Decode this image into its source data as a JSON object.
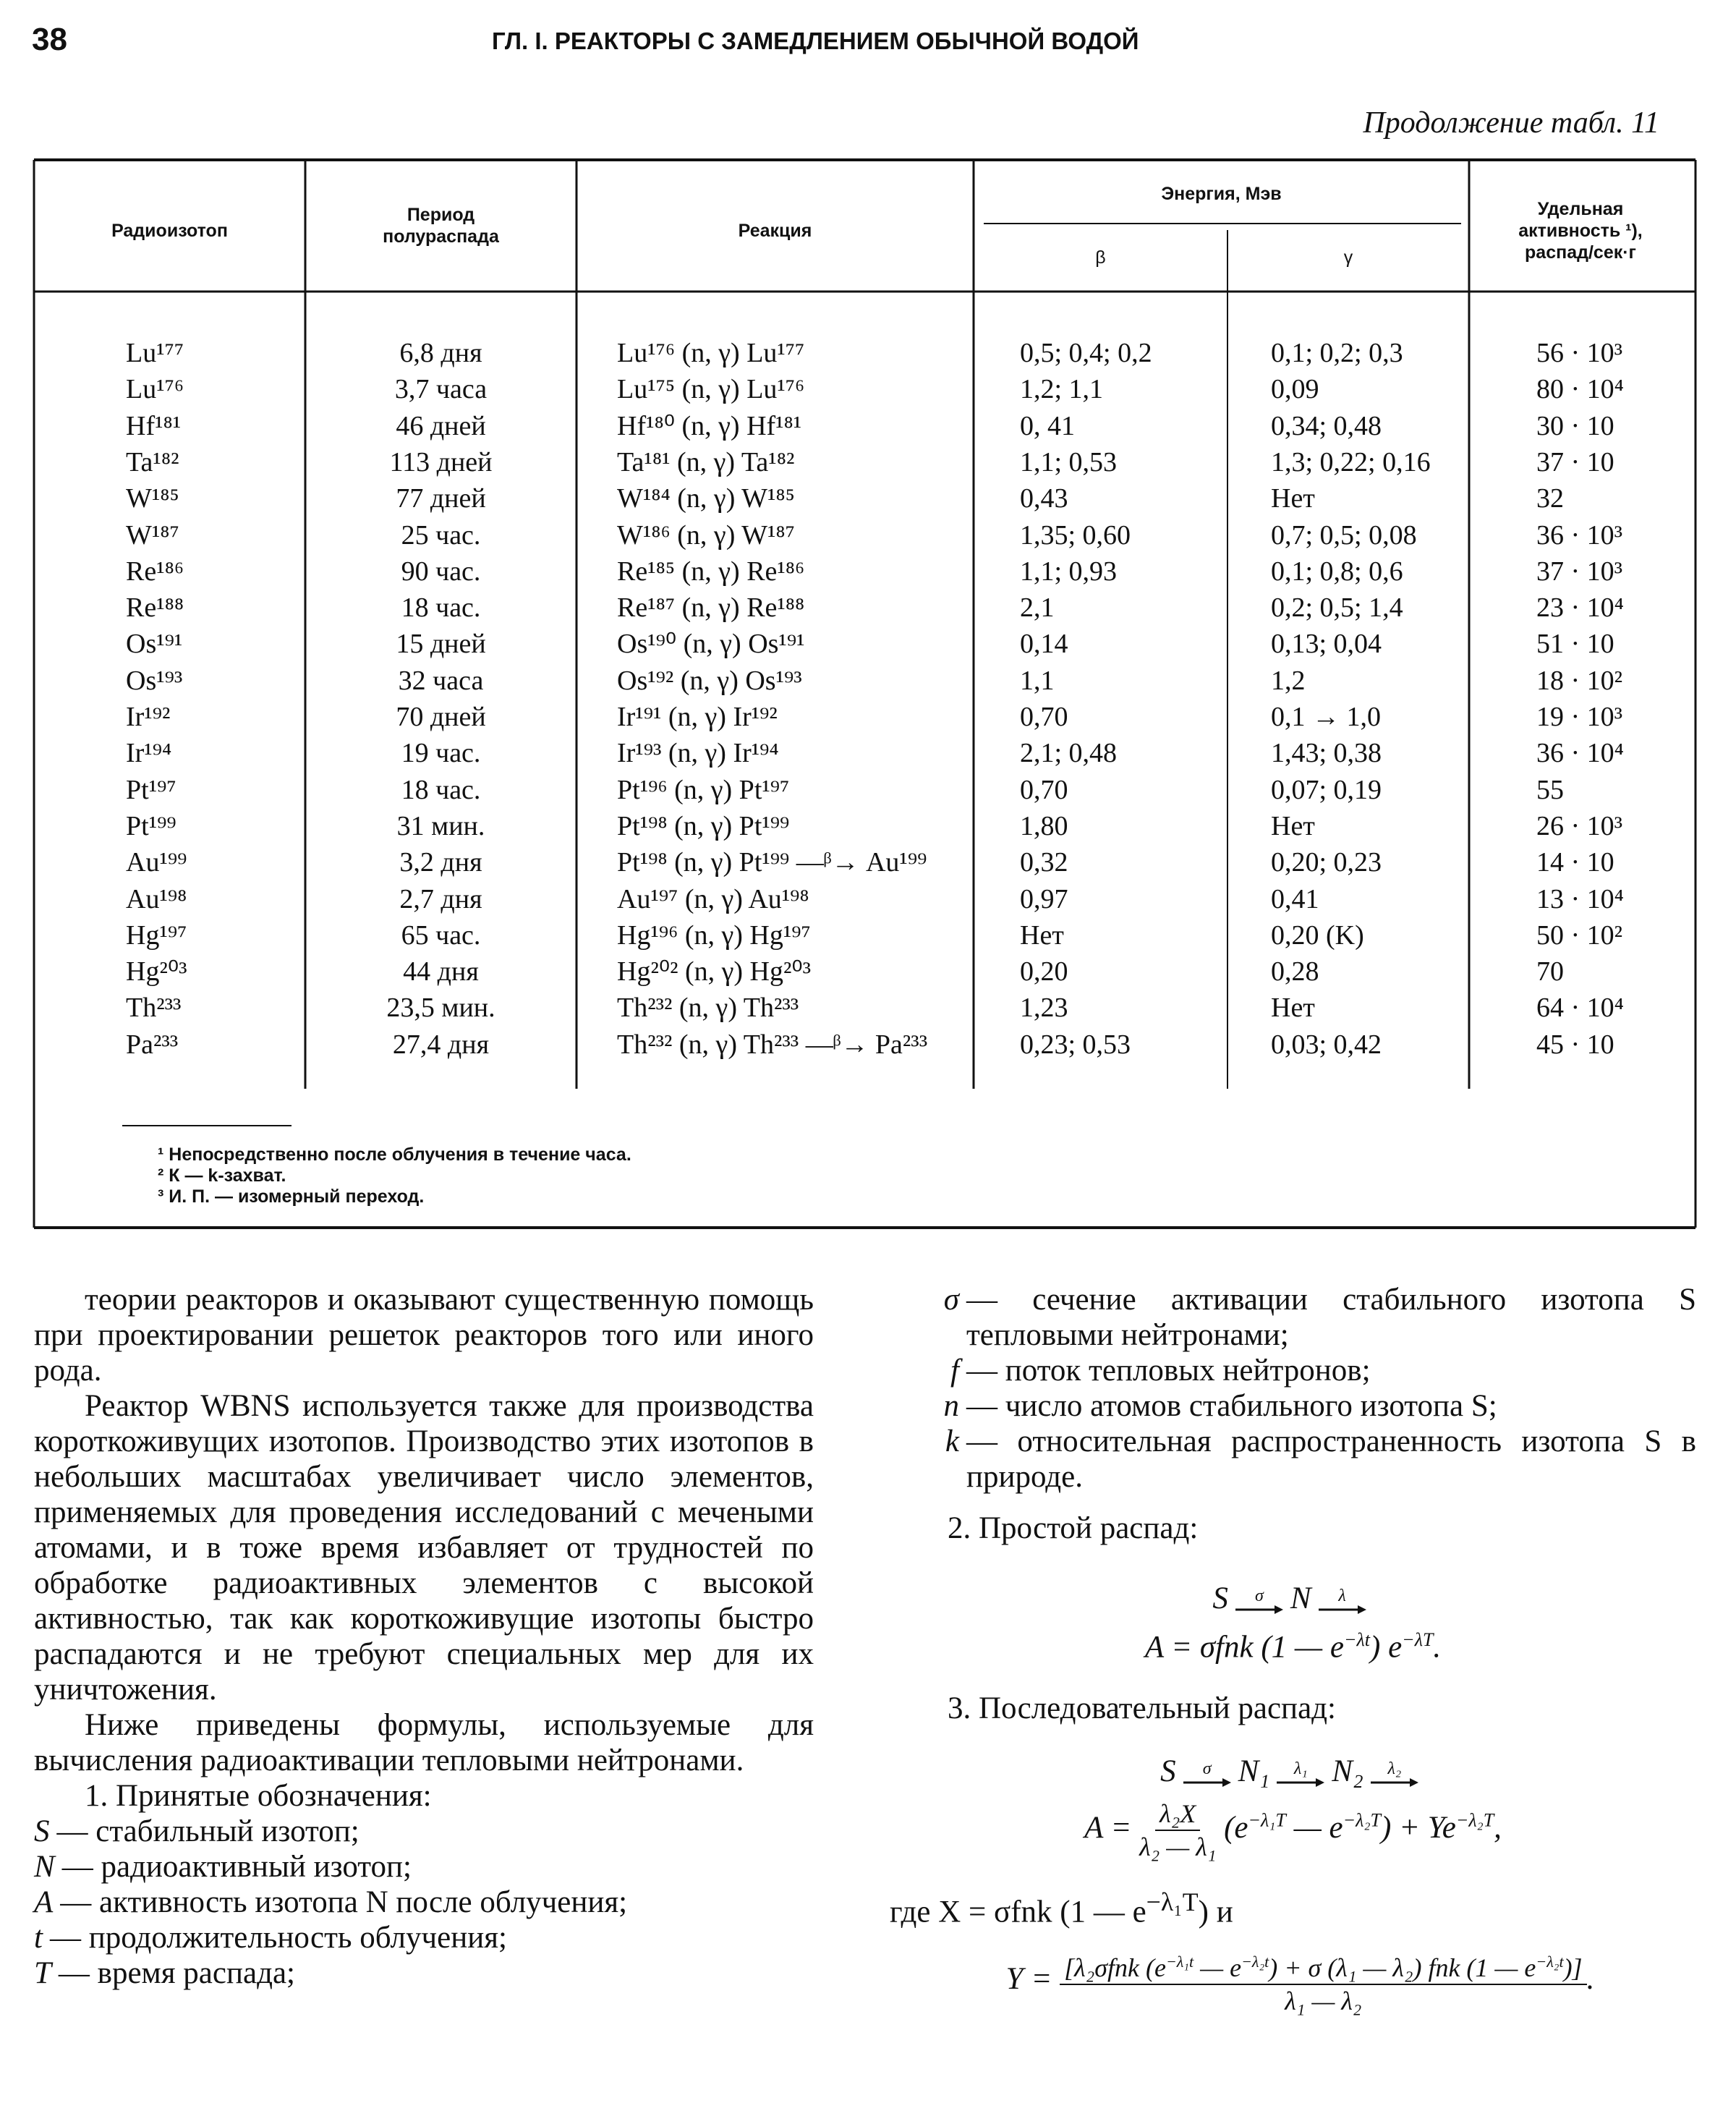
{
  "header": {
    "page_number": "38",
    "running_title": "ГЛ. I. РЕАКТОРЫ С ЗАМЕДЛЕНИЕМ ОБЫЧНОЙ ВОДОЙ",
    "continuation": "Продолжение табл. 11"
  },
  "table": {
    "headers": {
      "isotope": "Радиоизотоп",
      "half_life": "Период полураспада",
      "reaction": "Реакция",
      "energy": "Энергия, Мэв",
      "beta": "β",
      "gamma": "γ",
      "activity": "Удельная активность ¹), распад/сек·г"
    },
    "rows": [
      [
        "Lu¹⁷⁷",
        "6,8 дня",
        "Lu¹⁷⁶ (n, γ) Lu¹⁷⁷",
        "0,5; 0,4; 0,2",
        "0,1; 0,2; 0,3",
        "56 · 10³"
      ],
      [
        "Lu¹⁷⁶",
        "3,7 часа",
        "Lu¹⁷⁵ (n, γ) Lu¹⁷⁶",
        "1,2; 1,1",
        "0,09",
        "80 · 10⁴"
      ],
      [
        "Hf¹⁸¹",
        "46 дней",
        "Hf¹⁸⁰ (n, γ) Hf¹⁸¹",
        "0, 41",
        "0,34; 0,48",
        "30 · 10"
      ],
      [
        "Ta¹⁸²",
        "113 дней",
        "Ta¹⁸¹ (n, γ) Ta¹⁸²",
        "1,1; 0,53",
        "1,3; 0,22; 0,16",
        "37 · 10"
      ],
      [
        "W¹⁸⁵",
        "77 дней",
        "W¹⁸⁴ (n, γ) W¹⁸⁵",
        "0,43",
        "Нет",
        "32"
      ],
      [
        "W¹⁸⁷",
        "25 час.",
        "W¹⁸⁶ (n, γ) W¹⁸⁷",
        "1,35; 0,60",
        "0,7; 0,5; 0,08",
        "36 · 10³"
      ],
      [
        "Re¹⁸⁶",
        "90 час.",
        "Re¹⁸⁵ (n, γ) Re¹⁸⁶",
        "1,1; 0,93",
        "0,1; 0,8; 0,6",
        "37 · 10³"
      ],
      [
        "Re¹⁸⁸",
        "18 час.",
        "Re¹⁸⁷ (n, γ) Re¹⁸⁸",
        "2,1",
        "0,2; 0,5; 1,4",
        "23 · 10⁴"
      ],
      [
        "Os¹⁹¹",
        "15 дней",
        "Os¹⁹⁰ (n, γ) Os¹⁹¹",
        "0,14",
        "0,13; 0,04",
        "51 · 10"
      ],
      [
        "Os¹⁹³",
        "32 часа",
        "Os¹⁹² (n, γ) Os¹⁹³",
        "1,1",
        "1,2",
        "18 · 10²"
      ],
      [
        "Ir¹⁹²",
        "70 дней",
        "Ir¹⁹¹ (n, γ) Ir¹⁹²",
        "0,70",
        "0,1 → 1,0",
        "19 · 10³"
      ],
      [
        "Ir¹⁹⁴",
        "19 час.",
        "Ir¹⁹³ (n, γ) Ir¹⁹⁴",
        "2,1; 0,48",
        "1,43; 0,38",
        "36 · 10⁴"
      ],
      [
        "Pt¹⁹⁷",
        "18 час.",
        "Pt¹⁹⁶ (n, γ) Pt¹⁹⁷",
        "0,70",
        "0,07; 0,19",
        "55"
      ],
      [
        "Pt¹⁹⁹",
        "31 мин.",
        "Pt¹⁹⁸ (n, γ) Pt¹⁹⁹",
        "1,80",
        "Нет",
        "26 · 10³"
      ],
      [
        "Au¹⁹⁹",
        "3,2 дня",
        "Pt¹⁹⁸ (n, γ) Pt¹⁹⁹ —ᵝ→ Au¹⁹⁹",
        "0,32",
        "0,20; 0,23",
        "14 · 10"
      ],
      [
        "Au¹⁹⁸",
        "2,7 дня",
        "Au¹⁹⁷ (n, γ) Au¹⁹⁸",
        "0,97",
        "0,41",
        "13 · 10⁴"
      ],
      [
        "Hg¹⁹⁷",
        "65 час.",
        "Hg¹⁹⁶ (n, γ) Hg¹⁹⁷",
        "Нет",
        "0,20 (K)",
        "50 · 10²"
      ],
      [
        "Hg²⁰³",
        "44 дня",
        "Hg²⁰² (n, γ) Hg²⁰³",
        "0,20",
        "0,28",
        "70"
      ],
      [
        "Th²³³",
        "23,5 мин.",
        "Th²³² (n, γ) Th²³³",
        "1,23",
        "Нет",
        "64 · 10⁴"
      ],
      [
        "Pa²³³",
        "27,4 дня",
        "Th²³² (n, γ) Th²³³ —ᵝ→ Pa²³³",
        "0,23; 0,53",
        "0,03; 0,42",
        "45 · 10"
      ]
    ],
    "footnotes": [
      "¹ Непосредственно после облучения в течение часа.",
      "² К — k-захват.",
      "³ И. П. — изомерный переход."
    ]
  },
  "left_column": {
    "paragraphs": [
      "теории реакторов и оказывают существенную помощь при проектировании решеток реакторов того или иного рода.",
      "Реактор WBNS используется также для производства короткоживущих изотопов. Производство этих изотопов в небольших масштабах увеличивает число элементов, применяемых для проведения исследований с мечеными атомами, и в тоже время избавляет от трудностей по обработке радиоактивных элементов с высокой активностью, так как короткоживущие изотопы быстро распадаются и не требуют специальных мер для их уничтожения.",
      "Ниже приведены формулы, используемые для вычисления радиоактивации тепловыми нейтронами."
    ],
    "list_heading": "1. Принятые обозначения:",
    "definitions": [
      {
        "term": "S",
        "text": "— стабильный изотоп;"
      },
      {
        "term": "N",
        "text": "— радиоактивный изотоп;"
      },
      {
        "term": "A",
        "text": "— активность изотопа N после облучения;"
      },
      {
        "term": "t",
        "text": "— продолжительность облучения;"
      },
      {
        "term": "T",
        "text": "— время распада;"
      }
    ]
  },
  "right_column": {
    "definitions": [
      {
        "term": "σ",
        "text": "— сечение активации стабильного изотопа S тепловыми нейтронами;"
      },
      {
        "term": "f",
        "text": "— поток тепловых нейтронов;"
      },
      {
        "term": "n",
        "text": "— число атомов стабильного изотопа S;"
      },
      {
        "term": "k",
        "text": "— относительная распространенность изотопа S в природе."
      }
    ],
    "simple_heading": "2. Простой распад:",
    "simple_scheme": [
      {
        "text": "S"
      },
      {
        "over": "σ"
      },
      {
        "text": "N"
      },
      {
        "over": "λ"
      }
    ],
    "simple_formula": [
      {
        "text": "A = σfnk (1 — e"
      },
      {
        "sup": "−λt"
      },
      {
        "text": ") e"
      },
      {
        "sup": "−λT"
      },
      {
        "text": "."
      }
    ],
    "chain_heading": "3. Последовательный распад:",
    "chain_scheme": [
      {
        "text": "S"
      },
      {
        "over": "σ"
      },
      {
        "text": "N₁"
      },
      {
        "over": "λ₁"
      },
      {
        "text": "N₂"
      },
      {
        "over": "λ₂"
      }
    ],
    "chain_formula": [
      {
        "text": "A = "
      },
      {
        "num": [
          {
            "text": "λ₂X"
          }
        ],
        "den": [
          {
            "text": "λ₂ — λ₁"
          }
        ]
      },
      {
        "text": " (e"
      },
      {
        "sup": "−λ₁T"
      },
      {
        "text": " — e"
      },
      {
        "sup": "−λ₂T"
      },
      {
        "text": ") + Ye"
      },
      {
        "sup": "−λ₂T"
      },
      {
        "text": ","
      }
    ],
    "x_formula": [
      {
        "text": "где X = σfnk (1 — e"
      },
      {
        "sup": "−λ₁T"
      },
      {
        "text": ") и"
      }
    ],
    "y_formula": [
      {
        "text": "Y = "
      },
      {
        "num": [
          {
            "text": "[λ₂σfnk (e"
          },
          {
            "sup": "−λ₁t"
          },
          {
            "text": " — e"
          },
          {
            "sup": "−λ₂t"
          },
          {
            "text": ") + σ (λ₁ — λ₂) fnk (1 — e"
          },
          {
            "sup": "−λ₂t"
          },
          {
            "text": ")]"
          }
        ],
        "den": [
          {
            "text": "λ₁ — λ₂"
          }
        ]
      },
      {
        "text": "."
      }
    ]
  }
}
